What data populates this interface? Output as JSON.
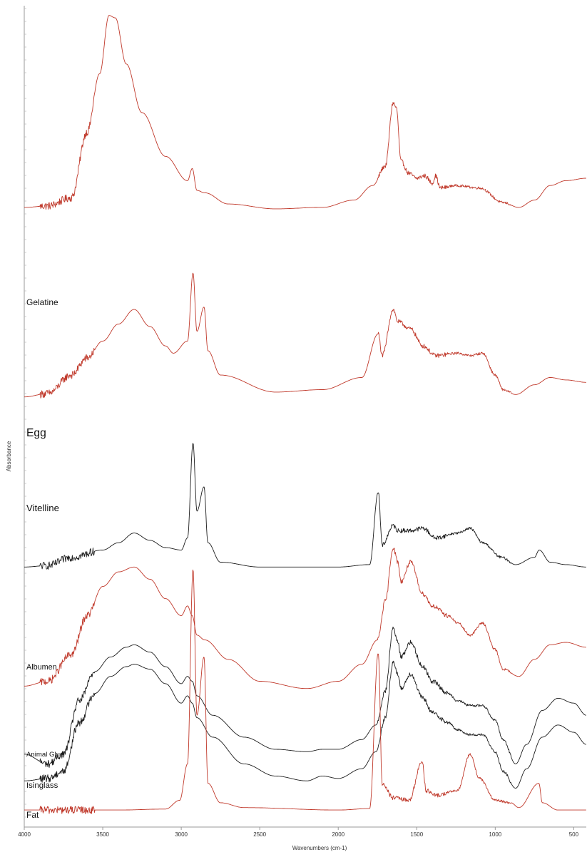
{
  "chart_data": {
    "type": "line",
    "xlabel": "Wavenumbers (cm-1)",
    "ylabel": "Absorbance",
    "xlim": [
      4000,
      420
    ],
    "x_reversed": true,
    "x_ticks": [
      4000,
      3500,
      3000,
      2500,
      2000,
      1500,
      1000,
      500
    ],
    "grid": false,
    "legend": "none",
    "colors": {
      "red": "#c0392b",
      "black": "#1c1c1c"
    },
    "series": [
      {
        "name": "Gelatine",
        "color": "red",
        "offset": 12.4,
        "label_scale": 1.0,
        "points": [
          [
            4000,
            0.05
          ],
          [
            3850,
            0.08
          ],
          [
            3700,
            0.25
          ],
          [
            3600,
            1.6
          ],
          [
            3520,
            2.8
          ],
          [
            3460,
            4.0
          ],
          [
            3420,
            3.95
          ],
          [
            3350,
            3.0
          ],
          [
            3250,
            2.0
          ],
          [
            3100,
            1.1
          ],
          [
            2960,
            0.6
          ],
          [
            2930,
            0.85
          ],
          [
            2900,
            0.4
          ],
          [
            2850,
            0.35
          ],
          [
            2700,
            0.12
          ],
          [
            2400,
            0.02
          ],
          [
            2100,
            0.05
          ],
          [
            1900,
            0.2
          ],
          [
            1780,
            0.5
          ],
          [
            1700,
            0.9
          ],
          [
            1650,
            2.2
          ],
          [
            1630,
            2.1
          ],
          [
            1600,
            1.0
          ],
          [
            1550,
            0.75
          ],
          [
            1500,
            0.65
          ],
          [
            1450,
            0.7
          ],
          [
            1400,
            0.55
          ],
          [
            1380,
            0.7
          ],
          [
            1350,
            0.45
          ],
          [
            1250,
            0.5
          ],
          [
            1100,
            0.45
          ],
          [
            950,
            0.15
          ],
          [
            850,
            0.05
          ],
          [
            750,
            0.2
          ],
          [
            650,
            0.5
          ],
          [
            550,
            0.6
          ],
          [
            420,
            0.65
          ]
        ]
      },
      {
        "name": "Egg",
        "color": "red",
        "offset": 8.5,
        "label_scale": 1.3,
        "points": [
          [
            4000,
            0.05
          ],
          [
            3850,
            0.12
          ],
          [
            3700,
            0.5
          ],
          [
            3600,
            0.85
          ],
          [
            3500,
            1.2
          ],
          [
            3400,
            1.55
          ],
          [
            3300,
            1.85
          ],
          [
            3200,
            1.5
          ],
          [
            3100,
            1.1
          ],
          [
            3050,
            0.95
          ],
          [
            2960,
            1.2
          ],
          [
            2925,
            2.6
          ],
          [
            2900,
            1.4
          ],
          [
            2855,
            1.9
          ],
          [
            2830,
            1.0
          ],
          [
            2750,
            0.5
          ],
          [
            2400,
            0.15
          ],
          [
            2100,
            0.2
          ],
          [
            1850,
            0.45
          ],
          [
            1745,
            1.35
          ],
          [
            1720,
            0.9
          ],
          [
            1650,
            1.85
          ],
          [
            1620,
            1.6
          ],
          [
            1540,
            1.45
          ],
          [
            1460,
            1.1
          ],
          [
            1380,
            0.9
          ],
          [
            1240,
            0.95
          ],
          [
            1160,
            0.9
          ],
          [
            1080,
            0.95
          ],
          [
            1000,
            0.5
          ],
          [
            950,
            0.2
          ],
          [
            870,
            0.1
          ],
          [
            750,
            0.3
          ],
          [
            650,
            0.45
          ],
          [
            550,
            0.4
          ],
          [
            420,
            0.35
          ]
        ]
      },
      {
        "name": "Vitelline",
        "color": "black",
        "offset": 5.0,
        "label_scale": 1.1,
        "points": [
          [
            4000,
            0.05
          ],
          [
            3850,
            0.08
          ],
          [
            3700,
            0.25
          ],
          [
            3500,
            0.4
          ],
          [
            3400,
            0.55
          ],
          [
            3300,
            0.75
          ],
          [
            3200,
            0.6
          ],
          [
            3100,
            0.45
          ],
          [
            3000,
            0.4
          ],
          [
            2960,
            0.65
          ],
          [
            2925,
            2.6
          ],
          [
            2900,
            1.2
          ],
          [
            2855,
            1.7
          ],
          [
            2830,
            0.55
          ],
          [
            2750,
            0.15
          ],
          [
            2500,
            0.05
          ],
          [
            2000,
            0.05
          ],
          [
            1800,
            0.1
          ],
          [
            1745,
            1.6
          ],
          [
            1720,
            0.5
          ],
          [
            1650,
            0.9
          ],
          [
            1620,
            0.8
          ],
          [
            1540,
            0.8
          ],
          [
            1460,
            0.85
          ],
          [
            1380,
            0.65
          ],
          [
            1240,
            0.75
          ],
          [
            1160,
            0.85
          ],
          [
            1080,
            0.55
          ],
          [
            960,
            0.25
          ],
          [
            870,
            0.1
          ],
          [
            750,
            0.25
          ],
          [
            720,
            0.4
          ],
          [
            650,
            0.15
          ],
          [
            550,
            0.1
          ],
          [
            420,
            0.05
          ]
        ]
      },
      {
        "name": "Albumen",
        "color": "red",
        "offset": 2.55,
        "label_scale": 0.9,
        "points": [
          [
            4000,
            0.05
          ],
          [
            3850,
            0.15
          ],
          [
            3700,
            0.7
          ],
          [
            3600,
            1.5
          ],
          [
            3500,
            2.1
          ],
          [
            3400,
            2.4
          ],
          [
            3300,
            2.5
          ],
          [
            3200,
            2.25
          ],
          [
            3100,
            1.85
          ],
          [
            3000,
            1.5
          ],
          [
            2960,
            1.7
          ],
          [
            2930,
            1.5
          ],
          [
            2900,
            1.1
          ],
          [
            2850,
            1.0
          ],
          [
            2700,
            0.6
          ],
          [
            2500,
            0.15
          ],
          [
            2200,
            0.0
          ],
          [
            2000,
            0.15
          ],
          [
            1850,
            0.5
          ],
          [
            1750,
            1.0
          ],
          [
            1700,
            1.8
          ],
          [
            1650,
            2.9
          ],
          [
            1620,
            2.6
          ],
          [
            1600,
            2.2
          ],
          [
            1540,
            2.6
          ],
          [
            1460,
            1.95
          ],
          [
            1400,
            1.7
          ],
          [
            1300,
            1.5
          ],
          [
            1240,
            1.35
          ],
          [
            1160,
            1.1
          ],
          [
            1080,
            1.35
          ],
          [
            1000,
            0.8
          ],
          [
            950,
            0.4
          ],
          [
            850,
            0.25
          ],
          [
            750,
            0.6
          ],
          [
            650,
            0.9
          ],
          [
            550,
            0.95
          ],
          [
            420,
            0.85
          ]
        ]
      },
      {
        "name": "Animal Glue",
        "color": "black",
        "offset": 1.2,
        "label_scale": 0.8,
        "points": [
          [
            4000,
            0.0
          ],
          [
            3850,
            -0.2
          ],
          [
            3750,
            0.0
          ],
          [
            3650,
            1.1
          ],
          [
            3550,
            1.7
          ],
          [
            3450,
            2.0
          ],
          [
            3350,
            2.2
          ],
          [
            3300,
            2.25
          ],
          [
            3200,
            2.1
          ],
          [
            3100,
            1.8
          ],
          [
            3000,
            1.45
          ],
          [
            2960,
            1.6
          ],
          [
            2930,
            1.5
          ],
          [
            2900,
            1.2
          ],
          [
            2800,
            0.8
          ],
          [
            2600,
            0.35
          ],
          [
            2400,
            0.1
          ],
          [
            2200,
            0.05
          ],
          [
            2100,
            0.1
          ],
          [
            2000,
            0.1
          ],
          [
            1850,
            0.3
          ],
          [
            1760,
            0.6
          ],
          [
            1700,
            1.3
          ],
          [
            1650,
            2.6
          ],
          [
            1620,
            2.3
          ],
          [
            1600,
            2.0
          ],
          [
            1540,
            2.3
          ],
          [
            1460,
            1.8
          ],
          [
            1400,
            1.5
          ],
          [
            1300,
            1.25
          ],
          [
            1240,
            1.1
          ],
          [
            1160,
            1.0
          ],
          [
            1080,
            1.0
          ],
          [
            1000,
            0.7
          ],
          [
            950,
            0.3
          ],
          [
            870,
            -0.2
          ],
          [
            800,
            0.2
          ],
          [
            700,
            0.9
          ],
          [
            600,
            1.15
          ],
          [
            500,
            1.05
          ],
          [
            420,
            0.8
          ]
        ]
      },
      {
        "name": "Isinglass",
        "color": "black",
        "offset": 0.65,
        "label_scale": 0.95,
        "points": [
          [
            4000,
            0.0
          ],
          [
            3850,
            0.05
          ],
          [
            3750,
            0.2
          ],
          [
            3650,
            1.2
          ],
          [
            3550,
            1.8
          ],
          [
            3450,
            2.15
          ],
          [
            3350,
            2.35
          ],
          [
            3300,
            2.4
          ],
          [
            3200,
            2.3
          ],
          [
            3100,
            2.0
          ],
          [
            3000,
            1.6
          ],
          [
            2960,
            1.75
          ],
          [
            2930,
            1.6
          ],
          [
            2900,
            1.3
          ],
          [
            2800,
            0.9
          ],
          [
            2600,
            0.35
          ],
          [
            2400,
            0.1
          ],
          [
            2200,
            0.0
          ],
          [
            2100,
            0.1
          ],
          [
            2000,
            0.05
          ],
          [
            1850,
            0.25
          ],
          [
            1760,
            0.6
          ],
          [
            1700,
            1.3
          ],
          [
            1650,
            2.45
          ],
          [
            1620,
            2.2
          ],
          [
            1600,
            1.9
          ],
          [
            1540,
            2.2
          ],
          [
            1460,
            1.7
          ],
          [
            1400,
            1.4
          ],
          [
            1300,
            1.2
          ],
          [
            1240,
            1.05
          ],
          [
            1160,
            0.95
          ],
          [
            1080,
            0.95
          ],
          [
            1000,
            0.6
          ],
          [
            950,
            0.2
          ],
          [
            870,
            -0.15
          ],
          [
            800,
            0.25
          ],
          [
            700,
            0.9
          ],
          [
            600,
            1.15
          ],
          [
            500,
            1.0
          ],
          [
            420,
            0.75
          ]
        ]
      },
      {
        "name": "Fat",
        "color": "red",
        "offset": 0.0,
        "label_scale": 1.0,
        "points": [
          [
            4000,
            0.05
          ],
          [
            3800,
            0.05
          ],
          [
            3600,
            0.05
          ],
          [
            3400,
            0.05
          ],
          [
            3100,
            0.07
          ],
          [
            3010,
            0.25
          ],
          [
            2960,
            1.0
          ],
          [
            2925,
            5.0
          ],
          [
            2900,
            2.0
          ],
          [
            2855,
            3.2
          ],
          [
            2830,
            0.6
          ],
          [
            2750,
            0.2
          ],
          [
            2600,
            0.1
          ],
          [
            2000,
            0.05
          ],
          [
            1800,
            0.08
          ],
          [
            1745,
            3.3
          ],
          [
            1720,
            0.6
          ],
          [
            1650,
            0.3
          ],
          [
            1550,
            0.25
          ],
          [
            1465,
            1.05
          ],
          [
            1440,
            0.45
          ],
          [
            1380,
            0.35
          ],
          [
            1240,
            0.45
          ],
          [
            1160,
            1.2
          ],
          [
            1100,
            0.7
          ],
          [
            1000,
            0.25
          ],
          [
            900,
            0.2
          ],
          [
            850,
            0.1
          ],
          [
            722,
            0.6
          ],
          [
            700,
            0.2
          ],
          [
            600,
            0.05
          ],
          [
            420,
            0.05
          ]
        ]
      }
    ]
  }
}
